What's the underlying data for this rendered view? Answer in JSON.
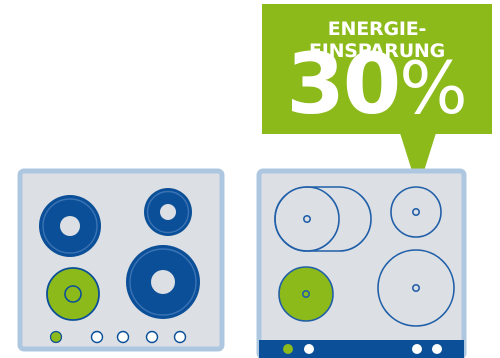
{
  "badge": {
    "title": "ENERGIE-EINSPARUNG",
    "value": "30",
    "unit": "%",
    "color": "#8dba1b",
    "text_color": "#ffffff"
  },
  "colors": {
    "blue": "#0a4f98",
    "green": "#8dba1b",
    "panel_fill": "#dcdfe3",
    "panel_border": "#aec7e0",
    "outline_blue": "#1f5ea8"
  },
  "left_cooktop": {
    "burners": [
      "large-blue-ring",
      "medium-blue-ring",
      "small-green-ring",
      "large-blue-ring"
    ],
    "controls": [
      "active-green",
      "inactive",
      "inactive",
      "inactive",
      "inactive"
    ]
  },
  "right_cooktop": {
    "zones": [
      "extended-oval-zone",
      "small-zone",
      "active-green-zone",
      "large-zone"
    ],
    "controls_left": [
      "active-green",
      "white"
    ],
    "controls_right": [
      "white",
      "white"
    ]
  }
}
